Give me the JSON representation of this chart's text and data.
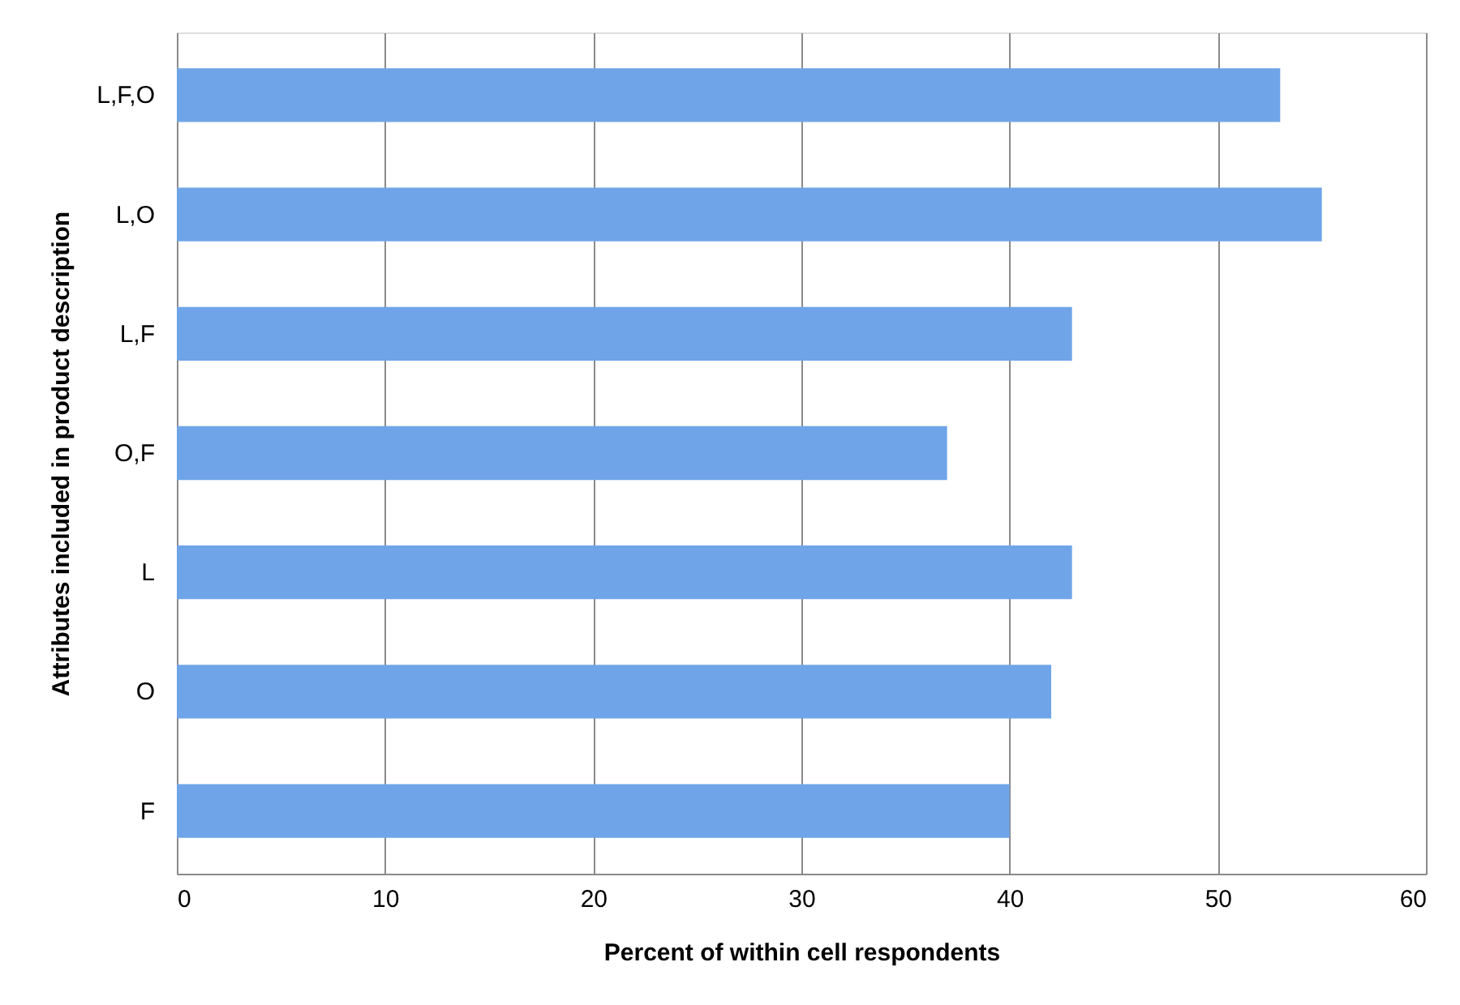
{
  "chart_data": {
    "type": "bar",
    "orientation": "horizontal",
    "xlabel": "Percent of within cell respondents",
    "ylabel": "Attributes included in product description",
    "categories": [
      "L,F,O",
      "L,O",
      "L,F",
      "O,F",
      "L",
      "O",
      "F"
    ],
    "values": [
      53,
      55,
      43,
      37,
      43,
      42,
      40
    ],
    "color": "#6fa5e8",
    "xlim": [
      0,
      60
    ],
    "xticks": [
      0,
      10,
      20,
      30,
      40,
      50,
      60
    ],
    "grid": "x"
  }
}
